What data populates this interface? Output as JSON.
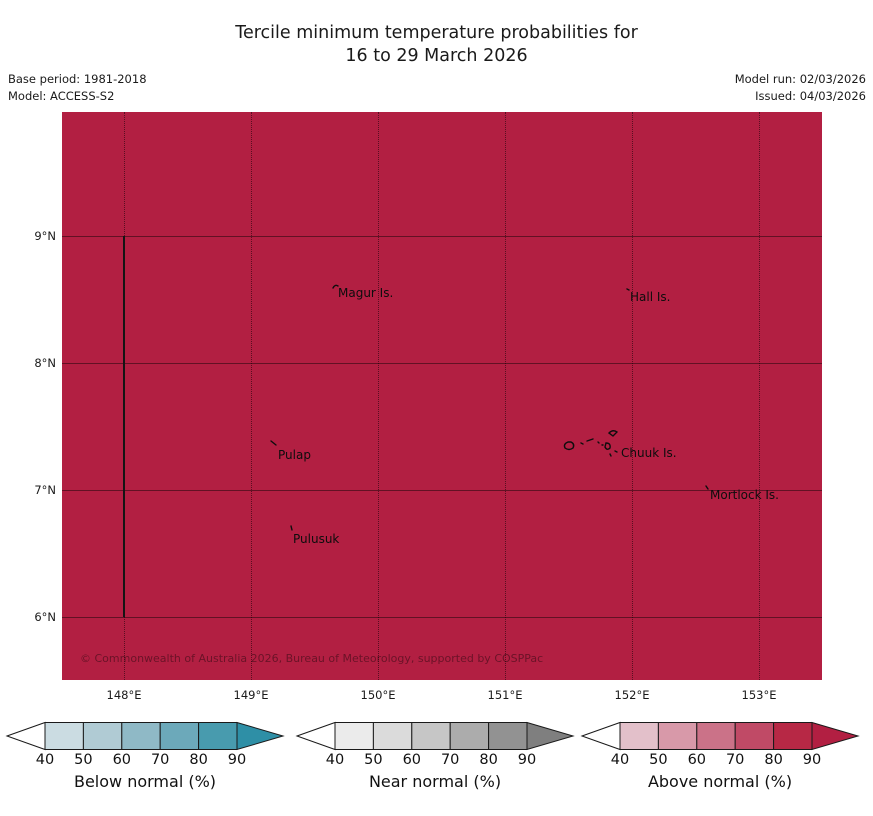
{
  "title": {
    "line1": "Tercile minimum temperature probabilities for",
    "line2": "16 to 29 March 2026"
  },
  "meta": {
    "base_period": "Base period: 1981-2018",
    "model": "Model: ACCESS-S2",
    "model_run": "Model run: 02/03/2026",
    "issued": "Issued: 04/03/2026"
  },
  "map": {
    "fill_color": "#b21f42",
    "fill_meaning": "Above normal probability greater than 90%",
    "copyright": "© Commonwealth of Australia 2026, Bureau of Meteorology, supported by COSPPac",
    "x_ticks": [
      "148°E",
      "149°E",
      "150°E",
      "151°E",
      "152°E",
      "153°E"
    ],
    "y_ticks": [
      "9°N",
      "8°N",
      "7°N",
      "6°N"
    ],
    "places": [
      {
        "name": "Magur Is."
      },
      {
        "name": "Hall Is."
      },
      {
        "name": "Pulap"
      },
      {
        "name": "Chuuk Is."
      },
      {
        "name": "Mortlock Is."
      },
      {
        "name": "Pulusuk"
      }
    ]
  },
  "colorbars": {
    "ticks": [
      "40",
      "50",
      "60",
      "70",
      "80",
      "90"
    ],
    "bars": [
      {
        "id": "below",
        "label": "Below normal (%)",
        "left_arrow_color": "#ffffff",
        "cell_colors": [
          "#cbdce2",
          "#b0cbd4",
          "#8fb9c6",
          "#6ca9ba",
          "#489bae"
        ],
        "arrow_color": "#2e8fa6"
      },
      {
        "id": "near",
        "label": "Near normal (%)",
        "left_arrow_color": "#ffffff",
        "cell_colors": [
          "#ebebeb",
          "#dbdbdb",
          "#c6c6c6",
          "#acacac",
          "#929292"
        ],
        "arrow_color": "#7f7f7f"
      },
      {
        "id": "above",
        "label": "Above normal (%)",
        "left_arrow_color": "#ffffff",
        "cell_colors": [
          "#e3c0ca",
          "#d899a9",
          "#cb7288",
          "#c04a66",
          "#b72845"
        ],
        "arrow_color": "#b21f42"
      }
    ]
  }
}
